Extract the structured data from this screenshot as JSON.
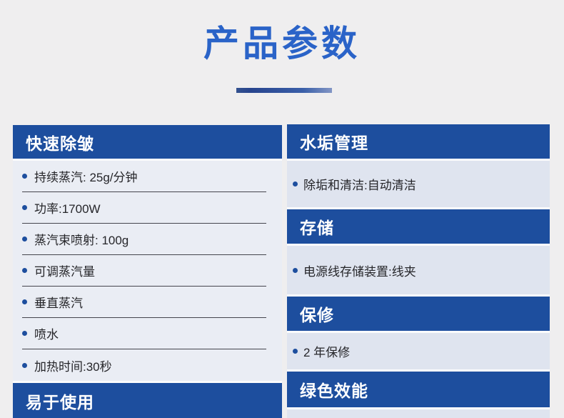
{
  "header": {
    "title": "产品参数"
  },
  "columns": {
    "left": {
      "sections": [
        {
          "type": "header",
          "label": "快速除皱"
        },
        {
          "type": "items",
          "items": [
            "持续蒸汽: 25g/分钟",
            "功率:1700W",
            "蒸汽束喷射: 100g",
            "可调蒸汽量",
            "垂直蒸汽",
            "喷水",
            "加热时间:30秒"
          ]
        },
        {
          "type": "header",
          "label": "易于使用"
        }
      ]
    },
    "right": {
      "sections": [
        {
          "type": "header",
          "label": "水垢管理"
        },
        {
          "type": "items",
          "items": [
            "除垢和清洁:自动清洁"
          ]
        },
        {
          "type": "header",
          "label": "存储"
        },
        {
          "type": "items",
          "items": [
            "电源线存储装置:线夹"
          ]
        },
        {
          "type": "header",
          "label": "保修"
        },
        {
          "type": "items",
          "items": [
            "2 年保修"
          ]
        },
        {
          "type": "header",
          "label": "绿色效能"
        },
        {
          "type": "items",
          "items": []
        }
      ]
    }
  },
  "icons": {
    "bullet": "bullet-icon"
  },
  "colors": {
    "banner_blue": "#1d4e9e",
    "title_blue": "#2a63c8",
    "bullet_blue": "#1d4e9e",
    "page_bg": "#efeeef"
  }
}
